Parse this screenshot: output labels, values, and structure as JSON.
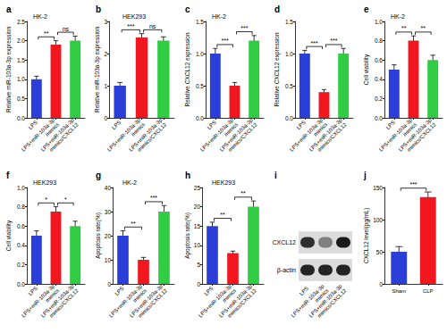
{
  "chart_data": [
    {
      "type": "bar",
      "panel": "a",
      "subtitle": "HK-2",
      "y_label": "Relative miR-103a-3p expression",
      "categories": [
        "LPS",
        "LPS+miR-103a-3p mimics",
        "LPS+miR-103a-3p mimics/CXCL12"
      ],
      "values": [
        1.0,
        1.9,
        2.0
      ],
      "errors": [
        0.08,
        0.1,
        0.12
      ],
      "colors": [
        "#2b3fd8",
        "#f2161f",
        "#2fcc44"
      ],
      "ylim": [
        0,
        2.5
      ],
      "yticks": [
        {
          "value": 0,
          "label": "0.0"
        },
        0.5,
        {
          "value": 1,
          "label": "1.0"
        },
        1.5,
        {
          "value": 2,
          "label": "2.0"
        },
        2.5
      ],
      "annotations": [
        {
          "between": [
            0,
            1
          ],
          "label": "**"
        },
        {
          "between": [
            1,
            2
          ],
          "label": "ns"
        }
      ]
    },
    {
      "type": "bar",
      "panel": "b",
      "subtitle": "HEK293",
      "y_label": "Relative miR-103a-3p expression",
      "categories": [
        "LPS",
        "LPS+miR-103a-3p mimics",
        "LPS+miR-103a-3p mimics/CXCL12"
      ],
      "values": [
        1.0,
        2.5,
        2.4
      ],
      "errors": [
        0.1,
        0.12,
        0.12
      ],
      "colors": [
        "#2b3fd8",
        "#f2161f",
        "#2fcc44"
      ],
      "ylim": [
        0,
        3
      ],
      "yticks": [
        0,
        1,
        2,
        3
      ],
      "annotations": [
        {
          "between": [
            0,
            1
          ],
          "label": "***"
        },
        {
          "between": [
            1,
            2
          ],
          "label": "ns"
        }
      ]
    },
    {
      "type": "bar",
      "panel": "c",
      "subtitle": "HK-2",
      "y_label": "Relative CXCL12 expression",
      "categories": [
        "LPS",
        "LPS+miR-103a-3p mimics",
        "LPS+miR-103a-3p mimics/CXCL12"
      ],
      "values": [
        1.0,
        0.5,
        1.2
      ],
      "errors": [
        0.08,
        0.05,
        0.08
      ],
      "colors": [
        "#2b3fd8",
        "#f2161f",
        "#2fcc44"
      ],
      "ylim": [
        0,
        1.5
      ],
      "yticks": [
        {
          "value": 0,
          "label": "0.0"
        },
        0.5,
        {
          "value": 1,
          "label": "1.0"
        },
        1.5
      ],
      "annotations": [
        {
          "between": [
            0,
            1
          ],
          "label": "***"
        },
        {
          "between": [
            1,
            2
          ],
          "label": "***"
        }
      ]
    },
    {
      "type": "bar",
      "panel": "d",
      "y_label": "Relative CXCL12 expression",
      "categories": [
        "LPS",
        "LPS+miR-103a-3p mimics",
        "LPS+miR-103a-3p mimics/CXCL12"
      ],
      "values": [
        1.0,
        0.4,
        1.0
      ],
      "errors": [
        0.05,
        0.04,
        0.08
      ],
      "colors": [
        "#2b3fd8",
        "#f2161f",
        "#2fcc44"
      ],
      "ylim": [
        0,
        1.5
      ],
      "yticks": [
        {
          "value": 0,
          "label": "0.0"
        },
        0.5,
        {
          "value": 1,
          "label": "1.0"
        },
        1.5
      ],
      "annotations": [
        {
          "between": [
            0,
            1
          ],
          "label": "***"
        },
        {
          "between": [
            1,
            2
          ],
          "label": "***"
        }
      ]
    },
    {
      "type": "bar",
      "panel": "e",
      "subtitle": "HK-2",
      "y_label": "Cell viability",
      "categories": [
        "LPS",
        "LPS+miR-103a-3p mimics",
        "LPS+miR-103a-3p mimics/CXCL12"
      ],
      "values": [
        0.5,
        0.8,
        0.6
      ],
      "errors": [
        0.05,
        0.05,
        0.05
      ],
      "colors": [
        "#2b3fd8",
        "#f2161f",
        "#2fcc44"
      ],
      "ylim": [
        0,
        1
      ],
      "yticks": [
        {
          "value": 0,
          "label": "0.0"
        },
        0.2,
        0.4,
        0.6,
        0.8,
        {
          "value": 1,
          "label": "1.0"
        }
      ],
      "annotations": [
        {
          "between": [
            0,
            1
          ],
          "label": "**"
        },
        {
          "between": [
            1,
            2
          ],
          "label": "**"
        }
      ]
    },
    {
      "type": "bar",
      "panel": "f",
      "subtitle": "HEK293",
      "y_label": "Cell viability",
      "categories": [
        "LPS",
        "LPS+miR-103a-3p mimics",
        "LPS+miR-103a-3p mimics/CXCL12"
      ],
      "values": [
        0.5,
        0.75,
        0.6
      ],
      "errors": [
        0.05,
        0.05,
        0.05
      ],
      "colors": [
        "#2b3fd8",
        "#f2161f",
        "#2fcc44"
      ],
      "ylim": [
        0,
        1
      ],
      "yticks": [
        {
          "value": 0,
          "label": "0.0"
        },
        0.2,
        0.4,
        0.6,
        0.8,
        {
          "value": 1,
          "label": "1.0"
        }
      ],
      "annotations": [
        {
          "between": [
            0,
            1
          ],
          "label": "*"
        },
        {
          "between": [
            1,
            2
          ],
          "label": "*"
        }
      ]
    },
    {
      "type": "bar",
      "panel": "g",
      "subtitle": "HK-2",
      "y_label": "Apoptosis rate(%)",
      "categories": [
        "LPS",
        "LPS+miR-103a-3p mimics",
        "LPS+miR-103a-3p mimics/CXCL12"
      ],
      "values": [
        20,
        10,
        30
      ],
      "errors": [
        2,
        1,
        2.5
      ],
      "colors": [
        "#2b3fd8",
        "#f2161f",
        "#2fcc44"
      ],
      "ylim": [
        0,
        40
      ],
      "yticks": [
        0,
        10,
        20,
        30,
        40
      ],
      "annotations": [
        {
          "between": [
            0,
            1
          ],
          "label": "**"
        },
        {
          "between": [
            1,
            2
          ],
          "label": "***"
        }
      ]
    },
    {
      "type": "bar",
      "panel": "h",
      "subtitle": "HEK293",
      "y_label": "Apoptosis rate(%)",
      "categories": [
        "LPS",
        "LPS+miR-103a-3p mimics",
        "LPS+miR-103a-3p mimics/CXCL12"
      ],
      "values": [
        15,
        8,
        20
      ],
      "errors": [
        1,
        0.5,
        1.5
      ],
      "colors": [
        "#2b3fd8",
        "#f2161f",
        "#2fcc44"
      ],
      "ylim": [
        0,
        25
      ],
      "yticks": [
        0,
        5,
        10,
        15,
        20,
        25
      ],
      "annotations": [
        {
          "between": [
            0,
            1
          ],
          "label": "**"
        },
        {
          "between": [
            1,
            2
          ],
          "label": "**"
        }
      ]
    },
    {
      "type": "blot",
      "panel": "i",
      "categories": [
        "LPS",
        "LPS+miR-103a-3p mimics",
        "LPS+miR-103a-3p mimics/CXCL12"
      ],
      "bands": [
        {
          "name": "CXCL12",
          "intensity": [
            0.85,
            0.45,
            0.95
          ]
        },
        {
          "name": "β-actin",
          "intensity": [
            0.9,
            0.9,
            0.9
          ]
        }
      ]
    },
    {
      "type": "bar",
      "panel": "j",
      "y_label": "CXCL12 level(pg/mL)",
      "categories": [
        "Sham",
        "CLP"
      ],
      "values": [
        50,
        135
      ],
      "errors": [
        8,
        8
      ],
      "colors": [
        "#2b3fd8",
        "#f2161f"
      ],
      "ylim": [
        0,
        150
      ],
      "yticks": [
        0,
        50,
        100,
        150
      ],
      "annotations": [
        {
          "between": [
            0,
            1
          ],
          "label": "***"
        }
      ]
    }
  ]
}
